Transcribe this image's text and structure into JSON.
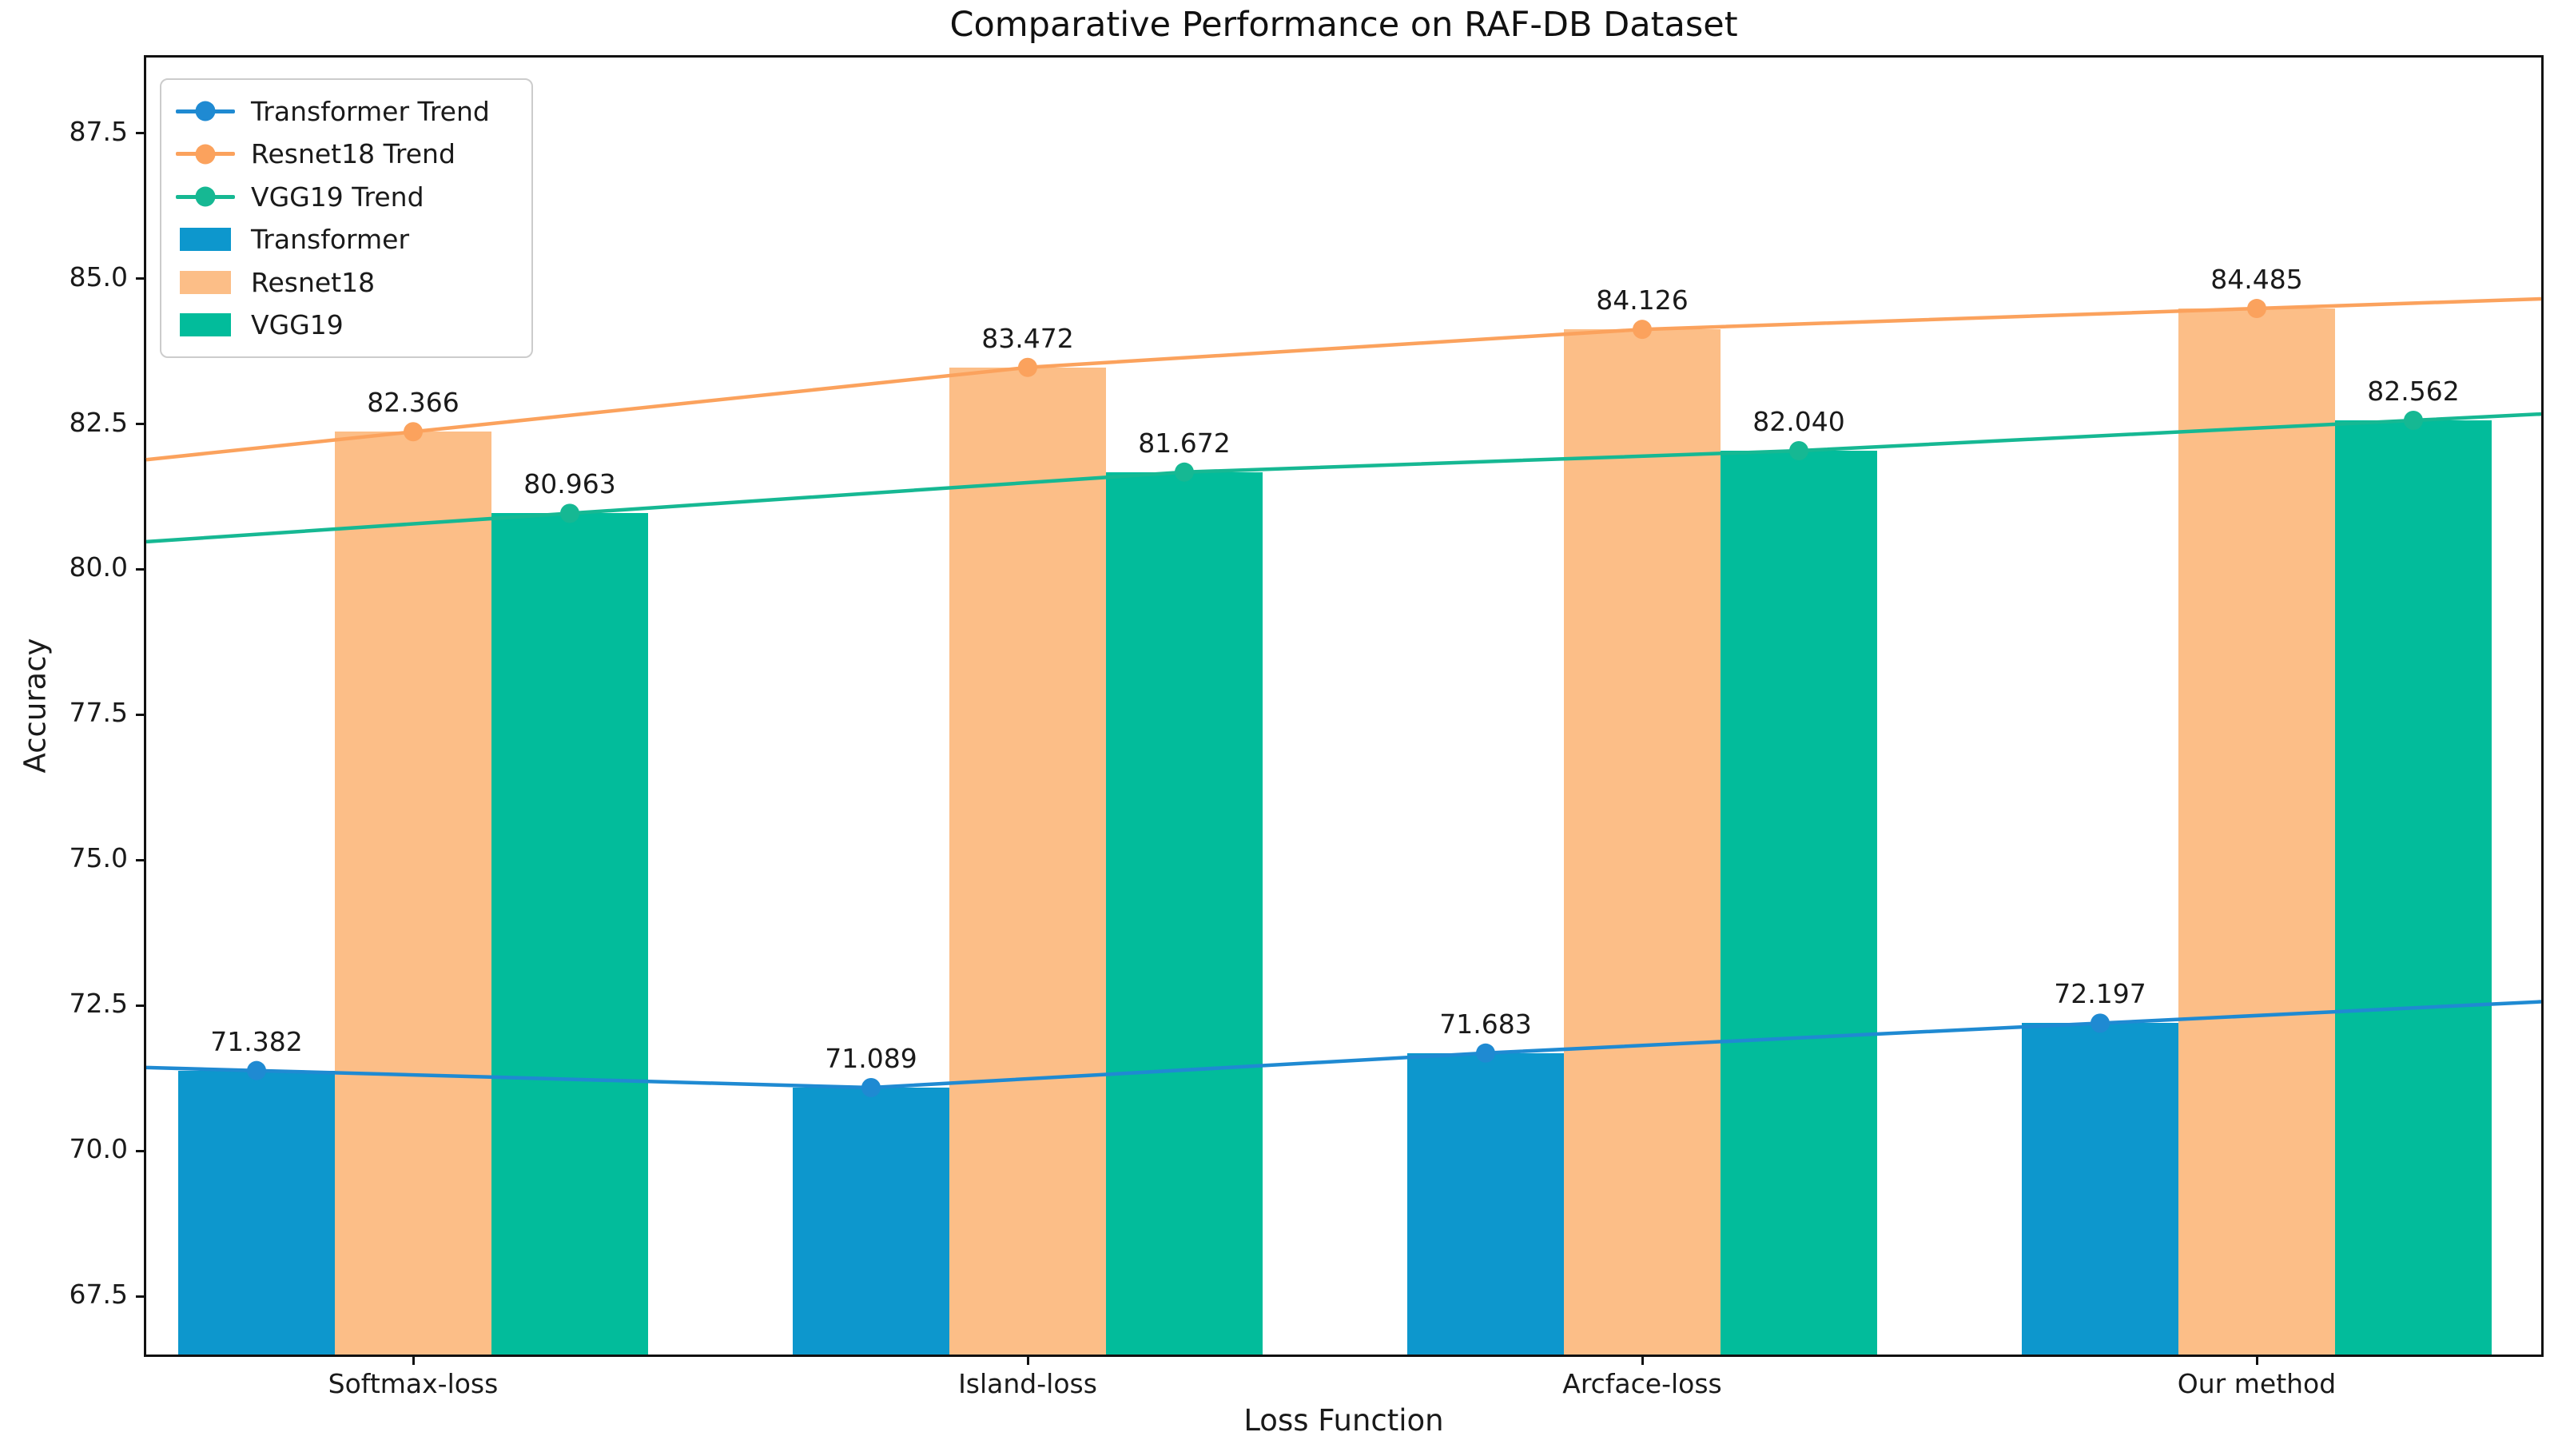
{
  "title": "Comparative Performance on RAF-DB Dataset",
  "axes": {
    "xlabel": "Loss Function",
    "ylabel": "Accuracy"
  },
  "chart_data": {
    "type": "bar",
    "title": "Comparative Performance on RAF-DB Dataset",
    "xlabel": "Loss Function",
    "ylabel": "Accuracy",
    "categories": [
      "Softmax-loss",
      "Island-loss",
      "Arcface-loss",
      "Our method"
    ],
    "series": [
      {
        "name": "Transformer",
        "trend_name": "Transformer Trend",
        "values": [
          71.382,
          71.089,
          71.683,
          72.197
        ],
        "bar_color": "#0d97cd",
        "line_color": "#1f8ad2"
      },
      {
        "name": "Resnet18",
        "trend_name": "Resnet18 Trend",
        "values": [
          82.366,
          83.472,
          84.126,
          84.485
        ],
        "bar_color": "#fcbe87",
        "line_color": "#fba25d"
      },
      {
        "name": "VGG19",
        "trend_name": "VGG19 Trend",
        "values": [
          80.963,
          81.672,
          82.04,
          82.562
        ],
        "bar_color": "#02bc9b",
        "line_color": "#16b893"
      }
    ],
    "yticks": [
      67.5,
      70.0,
      72.5,
      75.0,
      77.5,
      80.0,
      82.5,
      85.0,
      87.5
    ],
    "ylim": [
      66.5,
      88.8
    ],
    "grid": false,
    "legend_position": "upper left",
    "value_label_decimals": 3
  },
  "legend": {
    "items": [
      {
        "label": "Transformer Trend",
        "type": "line",
        "color": "#1f8ad2"
      },
      {
        "label": "Resnet18 Trend",
        "type": "line",
        "color": "#fba25d"
      },
      {
        "label": "VGG19 Trend",
        "type": "line",
        "color": "#16b893"
      },
      {
        "label": "Transformer",
        "type": "patch",
        "color": "#0d97cd"
      },
      {
        "label": "Resnet18",
        "type": "patch",
        "color": "#fcbe87"
      },
      {
        "label": "VGG19",
        "type": "patch",
        "color": "#02bc9b"
      }
    ]
  }
}
